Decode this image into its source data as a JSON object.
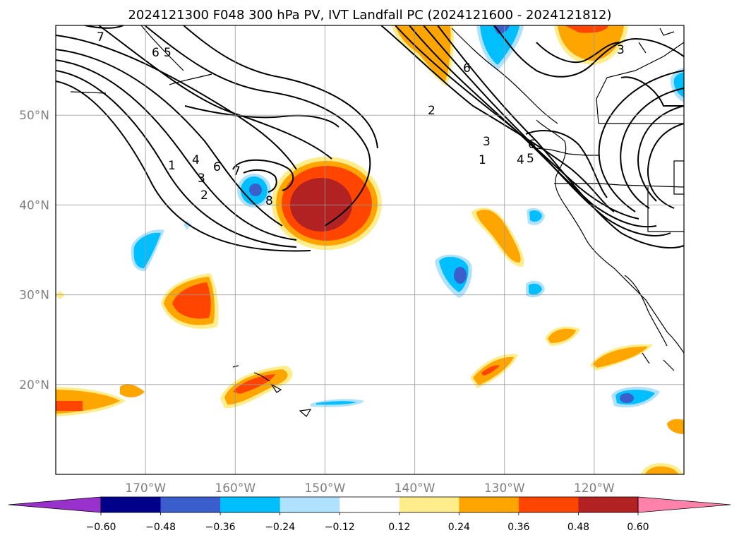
{
  "chart_data": {
    "type": "contour_map",
    "title": "2024121300 F048 300 hPa PV, IVT Landfall PC (2024121600 - 2024121812)",
    "projection": "lat-lon",
    "lon_range": [
      -180,
      -110
    ],
    "lat_range": [
      10,
      60
    ],
    "grid": true,
    "lon_ticks": [
      -170,
      -160,
      -150,
      -140,
      -130,
      -120
    ],
    "lon_tick_labels": [
      "170°W",
      "160°W",
      "150°W",
      "140°W",
      "130°W",
      "120°W"
    ],
    "lat_ticks": [
      20,
      30,
      40,
      50
    ],
    "lat_tick_labels": [
      "20°N",
      "30°N",
      "40°N",
      "50°N"
    ],
    "colorbar": {
      "orientation": "horizontal",
      "extend": "both",
      "levels": [
        -0.6,
        -0.48,
        -0.36,
        -0.24,
        -0.12,
        0.12,
        0.24,
        0.36,
        0.48,
        0.6
      ],
      "tick_labels": [
        "−0.60",
        "−0.48",
        "−0.36",
        "−0.24",
        "−0.12",
        "0.12",
        "0.24",
        "0.36",
        "0.48",
        "0.60"
      ],
      "colors": [
        "#9932cc",
        "#00008b",
        "#3a5fcd",
        "#00bfff",
        "#b0e2ff",
        "#ffffff",
        "#ffec8b",
        "#ffa500",
        "#ff4500",
        "#b22222",
        "#ff82ab"
      ]
    },
    "pv_contour_labels": [
      "7",
      "6",
      "5",
      "1",
      "4",
      "3",
      "2",
      "6",
      "7",
      "8",
      "2",
      "3",
      "1",
      "4",
      "5",
      "6",
      "3",
      "6"
    ],
    "shaded_features": [
      {
        "kind": "positive",
        "lon": -148,
        "lat": 41,
        "peak": 0.5
      },
      {
        "kind": "negative",
        "lon": -158,
        "lat": 41,
        "peak": -0.4
      },
      {
        "kind": "positive",
        "lon": -165,
        "lat": 29,
        "peak": 0.4
      },
      {
        "kind": "negative",
        "lon": -171,
        "lat": 35,
        "peak": -0.3
      },
      {
        "kind": "positive",
        "lon": -156,
        "lat": 20,
        "peak": 0.4
      },
      {
        "kind": "positive",
        "lon": -177,
        "lat": 18,
        "peak": 0.4
      },
      {
        "kind": "negative",
        "lon": -150,
        "lat": 18,
        "peak": -0.2
      },
      {
        "kind": "positive",
        "lon": -131,
        "lat": 37,
        "peak": 0.3
      },
      {
        "kind": "negative",
        "lon": -135,
        "lat": 33,
        "peak": -0.4
      },
      {
        "kind": "negative",
        "lon": -127,
        "lat": 31,
        "peak": -0.3
      },
      {
        "kind": "negative",
        "lon": -127,
        "lat": 39,
        "peak": -0.3
      },
      {
        "kind": "positive",
        "lon": -127,
        "lat": 25,
        "peak": 0.3
      },
      {
        "kind": "positive",
        "lon": -132,
        "lat": 21,
        "peak": 0.4
      },
      {
        "kind": "positive",
        "lon": -118,
        "lat": 23,
        "peak": 0.3
      },
      {
        "kind": "negative",
        "lon": -117,
        "lat": 18,
        "peak": -0.4
      },
      {
        "kind": "positive",
        "lon": -138,
        "lat": 58,
        "peak": 0.3
      },
      {
        "kind": "negative",
        "lon": -132,
        "lat": 59,
        "peak": -0.4
      },
      {
        "kind": "positive",
        "lon": -122,
        "lat": 58,
        "peak": 0.4
      },
      {
        "kind": "negative",
        "lon": -111,
        "lat": 54,
        "peak": -0.3
      },
      {
        "kind": "positive",
        "lon": -113,
        "lat": 10,
        "peak": 0.4
      },
      {
        "kind": "positive",
        "lon": -111,
        "lat": 15,
        "peak": 0.3
      }
    ]
  }
}
